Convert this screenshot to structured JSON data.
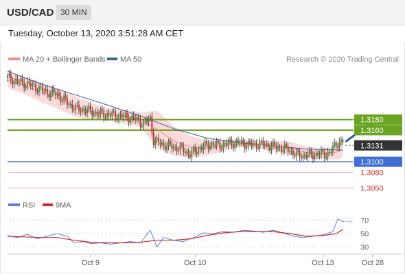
{
  "header": {
    "symbol": "USD/CAD",
    "timeframe": "30 MIN"
  },
  "datetime": "Tuesday, October 13, 2020 3:51:28 AM CET",
  "colors": {
    "ma20": "#f28a8a",
    "bands": "#f9d4d4",
    "ma50": "#3c5ea8",
    "resistance": "#6aa521",
    "support": "#3f6fd6",
    "support_weak": "#f2a0a0",
    "current": "#333333",
    "candle_up": "#35a02b",
    "candle_down": "#d13333",
    "rsi": "#5b7fd6",
    "rsi_ma": "#d82525",
    "arrow": "#2a5aa3"
  },
  "legend": {
    "ma20": "MA 20 + Bollinger Bands",
    "ma50": "MA 50",
    "credit": "Research © 2020 Trading Central"
  },
  "chart_data": {
    "type": "candlestick",
    "price_ylim": [
      1.3035,
      1.3285
    ],
    "levels": [
      {
        "label": "1.3180",
        "value": 1.318,
        "kind": "resistance"
      },
      {
        "label": "1.3160",
        "value": 1.316,
        "kind": "resistance"
      },
      {
        "label": "1.3131",
        "value": 1.3131,
        "kind": "current"
      },
      {
        "label": "1.3100",
        "value": 1.31,
        "kind": "support"
      },
      {
        "label": "1.3080",
        "value": 1.308,
        "kind": "support_weak"
      },
      {
        "label": "1.3050",
        "value": 1.305,
        "kind": "support_weak"
      }
    ],
    "price_path": [
      [
        0,
        1.326
      ],
      [
        6,
        1.3252
      ],
      [
        12,
        1.3248
      ],
      [
        18,
        1.324
      ],
      [
        24,
        1.3232
      ],
      [
        30,
        1.3228
      ],
      [
        36,
        1.3212
      ],
      [
        42,
        1.32
      ],
      [
        48,
        1.3198
      ],
      [
        54,
        1.3192
      ],
      [
        60,
        1.319
      ],
      [
        66,
        1.3188
      ],
      [
        72,
        1.3185
      ],
      [
        78,
        1.318
      ],
      [
        82,
        1.3172
      ],
      [
        86,
        1.3182
      ],
      [
        88,
        1.314
      ],
      [
        94,
        1.3132
      ],
      [
        100,
        1.3128
      ],
      [
        106,
        1.3122
      ],
      [
        110,
        1.3114
      ],
      [
        116,
        1.3126
      ],
      [
        122,
        1.3134
      ],
      [
        128,
        1.3131
      ],
      [
        134,
        1.3135
      ],
      [
        140,
        1.3136
      ],
      [
        146,
        1.3132
      ],
      [
        152,
        1.3134
      ],
      [
        158,
        1.313
      ],
      [
        164,
        1.3127
      ],
      [
        170,
        1.3122
      ],
      [
        174,
        1.3112
      ],
      [
        180,
        1.3112
      ],
      [
        186,
        1.3114
      ],
      [
        190,
        1.3115
      ],
      [
        194,
        1.3116
      ],
      [
        198,
        1.3135
      ],
      [
        202,
        1.3138
      ]
    ],
    "ma20": [
      [
        0,
        1.3255
      ],
      [
        10,
        1.3245
      ],
      [
        20,
        1.3232
      ],
      [
        30,
        1.322
      ],
      [
        40,
        1.3206
      ],
      [
        50,
        1.3196
      ],
      [
        60,
        1.319
      ],
      [
        70,
        1.3186
      ],
      [
        80,
        1.318
      ],
      [
        90,
        1.3162
      ],
      [
        100,
        1.314
      ],
      [
        110,
        1.3128
      ],
      [
        120,
        1.3126
      ],
      [
        130,
        1.313
      ],
      [
        140,
        1.3134
      ],
      [
        150,
        1.3133
      ],
      [
        160,
        1.313
      ],
      [
        170,
        1.3126
      ],
      [
        180,
        1.3118
      ],
      [
        190,
        1.3115
      ],
      [
        198,
        1.3118
      ],
      [
        202,
        1.3124
      ]
    ],
    "ma50": [
      [
        0,
        1.3272
      ],
      [
        20,
        1.3248
      ],
      [
        40,
        1.3228
      ],
      [
        60,
        1.3208
      ],
      [
        80,
        1.3187
      ],
      [
        100,
        1.3163
      ],
      [
        120,
        1.3145
      ],
      [
        140,
        1.3136
      ],
      [
        160,
        1.313
      ],
      [
        180,
        1.3124
      ],
      [
        202,
        1.3122
      ]
    ],
    "band_width": [
      [
        0,
        0.0014
      ],
      [
        20,
        0.0018
      ],
      [
        40,
        0.002
      ],
      [
        60,
        0.0012
      ],
      [
        80,
        0.0014
      ],
      [
        90,
        0.0035
      ],
      [
        100,
        0.0028
      ],
      [
        120,
        0.0014
      ],
      [
        140,
        0.0006
      ],
      [
        170,
        0.0012
      ],
      [
        190,
        0.001
      ],
      [
        202,
        0.0016
      ]
    ],
    "forecast": {
      "from": [
        202,
        1.3138
      ],
      "to": [
        222,
        1.318
      ]
    },
    "rsi": {
      "name": "RSI",
      "ma_name": "9MA",
      "ylim": [
        20,
        80
      ],
      "ticks": [
        "70",
        "50",
        "30"
      ],
      "values": [
        [
          0,
          47
        ],
        [
          6,
          44
        ],
        [
          12,
          49
        ],
        [
          18,
          42
        ],
        [
          24,
          46
        ],
        [
          30,
          50
        ],
        [
          36,
          46
        ],
        [
          40,
          36
        ],
        [
          46,
          38
        ],
        [
          50,
          35
        ],
        [
          56,
          36
        ],
        [
          62,
          34
        ],
        [
          68,
          36
        ],
        [
          74,
          38
        ],
        [
          80,
          36
        ],
        [
          86,
          55
        ],
        [
          90,
          30
        ],
        [
          94,
          44
        ],
        [
          100,
          40
        ],
        [
          106,
          38
        ],
        [
          112,
          44
        ],
        [
          118,
          51
        ],
        [
          124,
          50
        ],
        [
          130,
          53
        ],
        [
          136,
          52
        ],
        [
          142,
          55
        ],
        [
          148,
          54
        ],
        [
          154,
          52
        ],
        [
          160,
          55
        ],
        [
          166,
          51
        ],
        [
          172,
          46
        ],
        [
          178,
          44
        ],
        [
          184,
          46
        ],
        [
          190,
          48
        ],
        [
          196,
          53
        ],
        [
          199,
          72
        ],
        [
          202,
          68
        ]
      ],
      "ma": [
        [
          0,
          46
        ],
        [
          10,
          45
        ],
        [
          20,
          44
        ],
        [
          30,
          44
        ],
        [
          40,
          40
        ],
        [
          50,
          37
        ],
        [
          60,
          36
        ],
        [
          70,
          36
        ],
        [
          80,
          37
        ],
        [
          90,
          40
        ],
        [
          100,
          40
        ],
        [
          110,
          42
        ],
        [
          120,
          47
        ],
        [
          130,
          51
        ],
        [
          140,
          53
        ],
        [
          150,
          53
        ],
        [
          160,
          53
        ],
        [
          170,
          50
        ],
        [
          180,
          46
        ],
        [
          190,
          47
        ],
        [
          198,
          50
        ],
        [
          202,
          56
        ]
      ]
    },
    "x_ticks": [
      {
        "label": "Oct 9",
        "t": 50
      },
      {
        "label": "Oct 10",
        "t": 113
      },
      {
        "label": "Oct 13",
        "t": 190
      },
      {
        "label": "Oct 28",
        "t": 220
      }
    ],
    "t_range": [
      0,
      225
    ]
  }
}
